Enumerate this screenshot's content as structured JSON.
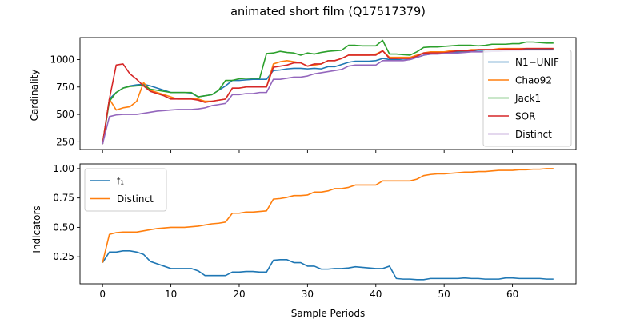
{
  "figure": {
    "title": "animated short film (Q17517379)"
  },
  "chart_data": [
    {
      "type": "line",
      "title": "",
      "xlabel": "",
      "ylabel": "Cardinality",
      "xlim": [
        -3.3,
        69.3
      ],
      "ylim": [
        180,
        1200
      ],
      "xticks": [
        0,
        10,
        20,
        30,
        40,
        50,
        60
      ],
      "xtick_labels_visible": false,
      "yticks": [
        250,
        500,
        750,
        1000
      ],
      "ytick_labels": [
        "250",
        "500",
        "750",
        "1000"
      ],
      "grid": false,
      "legend": "lower-right",
      "x": [
        0,
        1,
        2,
        3,
        4,
        5,
        6,
        7,
        8,
        9,
        10,
        11,
        12,
        13,
        14,
        15,
        16,
        17,
        18,
        19,
        20,
        21,
        22,
        23,
        24,
        25,
        26,
        27,
        28,
        29,
        30,
        31,
        32,
        33,
        34,
        35,
        36,
        37,
        38,
        39,
        40,
        41,
        42,
        43,
        44,
        45,
        46,
        47,
        48,
        49,
        50,
        51,
        52,
        53,
        54,
        55,
        56,
        57,
        58,
        59,
        60,
        61,
        62,
        63,
        64,
        65,
        66
      ],
      "series": [
        {
          "name": "N1−UNIF",
          "color": "#1f77b4",
          "values": [
            230,
            640,
            700,
            740,
            760,
            770,
            775,
            760,
            740,
            720,
            700,
            700,
            700,
            695,
            660,
            670,
            680,
            720,
            760,
            810,
            810,
            815,
            820,
            820,
            820,
            900,
            905,
            915,
            920,
            920,
            915,
            920,
            915,
            935,
            935,
            955,
            975,
            985,
            985,
            985,
            990,
            1010,
            1000,
            1000,
            995,
            1000,
            1020,
            1040,
            1050,
            1060,
            1060,
            1065,
            1070,
            1070,
            1075,
            1075,
            1075,
            1080,
            1080,
            1080,
            1085,
            1085,
            1090,
            1090,
            1090,
            1090,
            1090
          ]
        },
        {
          "name": "Chao92",
          "color": "#ff7f0e",
          "values": [
            230,
            640,
            540,
            560,
            570,
            620,
            790,
            720,
            700,
            680,
            660,
            640,
            640,
            640,
            640,
            620,
            620,
            630,
            640,
            740,
            740,
            750,
            750,
            750,
            750,
            960,
            980,
            990,
            980,
            970,
            940,
            950,
            960,
            990,
            990,
            1010,
            1040,
            1040,
            1040,
            1040,
            1050,
            1080,
            1020,
            1020,
            1020,
            1020,
            1040,
            1060,
            1070,
            1070,
            1070,
            1080,
            1080,
            1080,
            1090,
            1090,
            1090,
            1090,
            1100,
            1100,
            1100,
            1100,
            1100,
            1100,
            1100,
            1100,
            1100
          ]
        },
        {
          "name": "Jack1",
          "color": "#2ca02c",
          "values": [
            230,
            620,
            700,
            740,
            755,
            760,
            765,
            730,
            720,
            710,
            700,
            700,
            700,
            700,
            660,
            670,
            680,
            720,
            810,
            810,
            825,
            830,
            830,
            830,
            1055,
            1060,
            1075,
            1065,
            1060,
            1040,
            1060,
            1050,
            1065,
            1075,
            1080,
            1085,
            1130,
            1130,
            1125,
            1125,
            1125,
            1175,
            1050,
            1050,
            1045,
            1040,
            1070,
            1110,
            1115,
            1115,
            1120,
            1125,
            1130,
            1130,
            1130,
            1125,
            1130,
            1140,
            1140,
            1140,
            1145,
            1145,
            1160,
            1160,
            1155,
            1150,
            1150
          ]
        },
        {
          "name": "SOR",
          "color": "#d62728",
          "values": [
            230,
            640,
            950,
            960,
            870,
            820,
            760,
            710,
            690,
            670,
            640,
            640,
            640,
            640,
            630,
            610,
            620,
            630,
            640,
            740,
            740,
            750,
            750,
            750,
            750,
            930,
            940,
            950,
            970,
            970,
            940,
            960,
            960,
            990,
            990,
            1010,
            1040,
            1040,
            1040,
            1040,
            1040,
            1080,
            1010,
            1010,
            1010,
            1010,
            1030,
            1060,
            1060,
            1060,
            1060,
            1070,
            1080,
            1080,
            1080,
            1090,
            1090,
            1090,
            1090,
            1095,
            1095,
            1095,
            1100,
            1100,
            1100,
            1100,
            1100
          ]
        },
        {
          "name": "Distinct",
          "color": "#9467bd",
          "values": [
            230,
            480,
            495,
            500,
            500,
            500,
            510,
            520,
            530,
            535,
            540,
            545,
            545,
            545,
            550,
            560,
            580,
            590,
            600,
            680,
            680,
            690,
            690,
            700,
            700,
            820,
            820,
            830,
            840,
            840,
            850,
            870,
            880,
            890,
            900,
            910,
            940,
            950,
            950,
            950,
            950,
            990,
            990,
            990,
            990,
            1000,
            1020,
            1040,
            1050,
            1050,
            1055,
            1060,
            1060,
            1065,
            1070,
            1070,
            1070,
            1075,
            1075,
            1080,
            1080,
            1080,
            1085,
            1085,
            1085,
            1085,
            1085
          ]
        }
      ]
    },
    {
      "type": "line",
      "title": "",
      "xlabel": "Sample Periods",
      "ylabel": "Indicators",
      "xlim": [
        -3.3,
        69.3
      ],
      "ylim": [
        0.02,
        1.04
      ],
      "xticks": [
        0,
        10,
        20,
        30,
        40,
        50,
        60
      ],
      "xtick_labels": [
        "0",
        "10",
        "20",
        "30",
        "40",
        "50",
        "60"
      ],
      "yticks": [
        0.25,
        0.5,
        0.75,
        1.0
      ],
      "ytick_labels": [
        "0.25",
        "0.50",
        "0.75",
        "1.00"
      ],
      "grid": false,
      "legend": "upper-left",
      "x": [
        0,
        1,
        2,
        3,
        4,
        5,
        6,
        7,
        8,
        9,
        10,
        11,
        12,
        13,
        14,
        15,
        16,
        17,
        18,
        19,
        20,
        21,
        22,
        23,
        24,
        25,
        26,
        27,
        28,
        29,
        30,
        31,
        32,
        33,
        34,
        35,
        36,
        37,
        38,
        39,
        40,
        41,
        42,
        43,
        44,
        45,
        46,
        47,
        48,
        49,
        50,
        51,
        52,
        53,
        54,
        55,
        56,
        57,
        58,
        59,
        60,
        61,
        62,
        63,
        64,
        65,
        66
      ],
      "series": [
        {
          "name": "f₁",
          "color": "#1f77b4",
          "values": [
            0.2,
            0.29,
            0.29,
            0.3,
            0.3,
            0.29,
            0.27,
            0.21,
            0.19,
            0.17,
            0.15,
            0.15,
            0.15,
            0.15,
            0.13,
            0.09,
            0.09,
            0.09,
            0.09,
            0.12,
            0.12,
            0.125,
            0.125,
            0.12,
            0.12,
            0.22,
            0.225,
            0.225,
            0.2,
            0.2,
            0.17,
            0.17,
            0.145,
            0.145,
            0.15,
            0.15,
            0.155,
            0.165,
            0.16,
            0.155,
            0.15,
            0.15,
            0.17,
            0.065,
            0.06,
            0.06,
            0.055,
            0.055,
            0.065,
            0.065,
            0.065,
            0.065,
            0.065,
            0.07,
            0.065,
            0.065,
            0.06,
            0.06,
            0.06,
            0.07,
            0.07,
            0.065,
            0.065,
            0.065,
            0.065,
            0.06,
            0.06
          ]
        },
        {
          "name": "Distinct",
          "color": "#ff7f0e",
          "values": [
            0.2,
            0.44,
            0.455,
            0.46,
            0.46,
            0.46,
            0.47,
            0.48,
            0.49,
            0.495,
            0.5,
            0.5,
            0.5,
            0.505,
            0.51,
            0.52,
            0.53,
            0.535,
            0.545,
            0.62,
            0.62,
            0.63,
            0.63,
            0.635,
            0.64,
            0.74,
            0.745,
            0.755,
            0.77,
            0.77,
            0.775,
            0.8,
            0.8,
            0.81,
            0.83,
            0.83,
            0.84,
            0.86,
            0.86,
            0.86,
            0.86,
            0.895,
            0.895,
            0.895,
            0.895,
            0.895,
            0.91,
            0.94,
            0.95,
            0.955,
            0.955,
            0.96,
            0.965,
            0.97,
            0.97,
            0.975,
            0.975,
            0.98,
            0.985,
            0.985,
            0.985,
            0.99,
            0.99,
            0.995,
            0.995,
            1.0,
            1.0
          ]
        }
      ]
    }
  ]
}
